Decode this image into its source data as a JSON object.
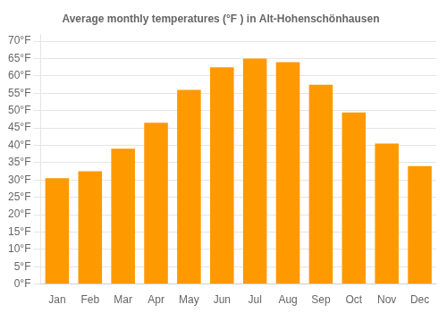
{
  "chart_data": {
    "type": "bar",
    "title": "Average monthly temperatures (°F ) in Alt-Hohenschönhausen",
    "categories": [
      "Jan",
      "Feb",
      "Mar",
      "Apr",
      "May",
      "Jun",
      "Jul",
      "Aug",
      "Sep",
      "Oct",
      "Nov",
      "Dec"
    ],
    "values": [
      30.5,
      32.5,
      39.0,
      46.5,
      56.0,
      62.5,
      65.0,
      64.0,
      57.5,
      49.5,
      40.5,
      34.0
    ],
    "color": "#FF9900",
    "ylim": [
      0,
      72
    ],
    "yticks": [
      {
        "value": 0,
        "label": "0°F"
      },
      {
        "value": 5,
        "label": "5°F"
      },
      {
        "value": 10,
        "label": "10°F"
      },
      {
        "value": 15,
        "label": "15°F"
      },
      {
        "value": 20,
        "label": "20°F"
      },
      {
        "value": 25,
        "label": "25°F"
      },
      {
        "value": 30,
        "label": "30°F"
      },
      {
        "value": 35,
        "label": "35°F"
      },
      {
        "value": 40,
        "label": "40°F"
      },
      {
        "value": 45,
        "label": "45°F"
      },
      {
        "value": 50,
        "label": "50°F"
      },
      {
        "value": 55,
        "label": "55°F"
      },
      {
        "value": 60,
        "label": "60°F"
      },
      {
        "value": 65,
        "label": "65°F"
      },
      {
        "value": 70,
        "label": "70°F"
      }
    ],
    "grid": true
  }
}
